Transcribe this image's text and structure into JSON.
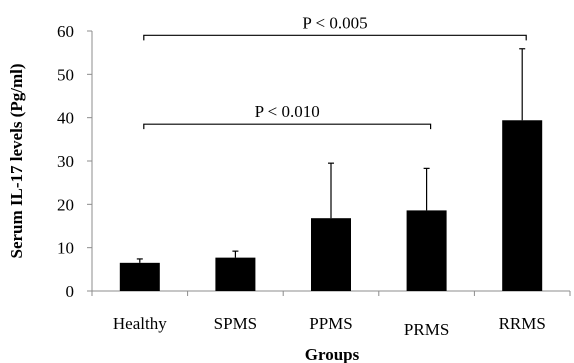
{
  "chart_data": {
    "type": "bar",
    "xlabel": "Groups",
    "ylabel": "Serum IL-17 levels (Pg/ml)",
    "ylim": [
      0,
      60
    ],
    "yticks": [
      0,
      10,
      20,
      30,
      40,
      50,
      60
    ],
    "grid": false,
    "categories": [
      "Healthy",
      "SPMS",
      "PPMS",
      "PRMS",
      "RRMS"
    ],
    "values": [
      6.5,
      7.7,
      16.8,
      18.6,
      39.4
    ],
    "error_upper": [
      0.9,
      1.5,
      12.7,
      9.7,
      16.5
    ],
    "bar_color": "#000000",
    "annotations": [
      {
        "text": "P < 0.010",
        "from_category": "Healthy",
        "to_category": "PRMS",
        "y": 38.5
      },
      {
        "text": "P < 0.005",
        "from_category": "Healthy",
        "to_category": "RRMS",
        "y": 59.0
      }
    ]
  }
}
